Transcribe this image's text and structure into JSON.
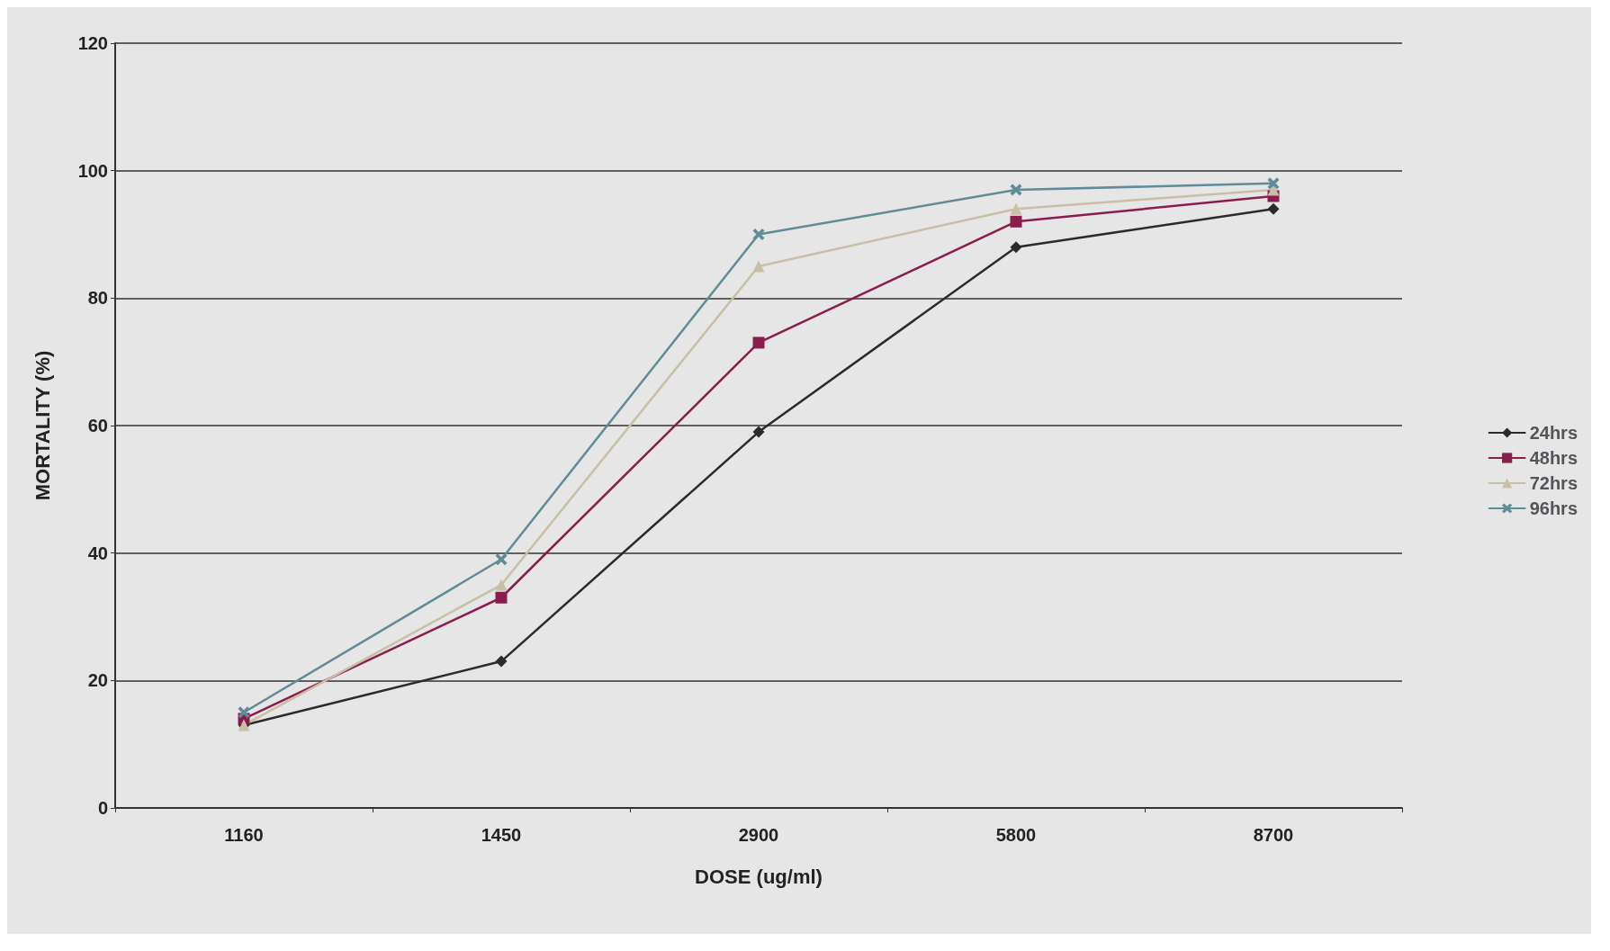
{
  "chart_data": {
    "type": "line",
    "xlabel": "DOSE (ug/ml)",
    "ylabel": "MORTALITY (%)",
    "categories": [
      "1160",
      "1450",
      "2900",
      "5800",
      "8700"
    ],
    "series": [
      {
        "name": "24hrs",
        "color": "#2b2b2b",
        "marker": "diamond",
        "values": [
          13,
          23,
          59,
          88,
          94
        ]
      },
      {
        "name": "48hrs",
        "color": "#8b1d4e",
        "marker": "square",
        "values": [
          14,
          33,
          73,
          92,
          96
        ]
      },
      {
        "name": "72hrs",
        "color": "#c9bfa6",
        "marker": "triangle",
        "values": [
          13,
          35,
          85,
          94,
          97
        ]
      },
      {
        "name": "96hrs",
        "color": "#5f8c96",
        "marker": "cross",
        "values": [
          15,
          39,
          90,
          97,
          98
        ]
      }
    ],
    "ylim": [
      0,
      120
    ],
    "yticks": [
      0,
      20,
      40,
      60,
      80,
      100,
      120
    ],
    "grid": "y",
    "legend": "right",
    "line_style": "solid"
  }
}
